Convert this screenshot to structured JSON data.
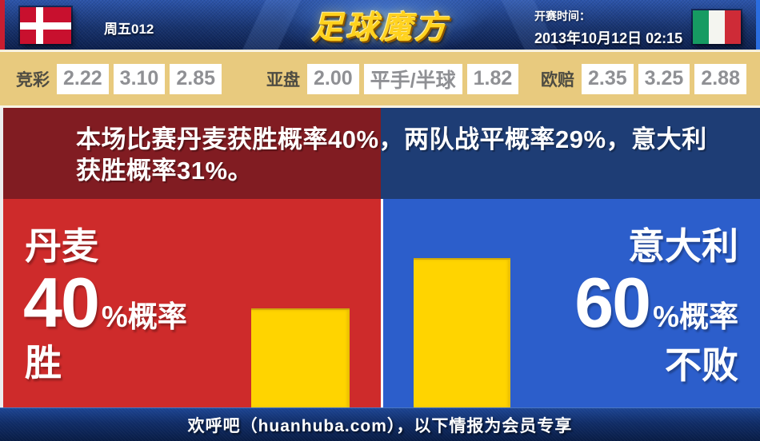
{
  "header": {
    "match_code": "周五012",
    "logo_text": "足球魔方",
    "kickoff_label": "开赛时间：",
    "kickoff_datetime": "2013年10月12日 02:15"
  },
  "icons": {
    "home_flag": "denmark-flag",
    "away_flag": "italy-flag"
  },
  "odds": {
    "groups": [
      {
        "label": "竞彩",
        "values": [
          "2.22",
          "3.10",
          "2.85"
        ]
      },
      {
        "label": "亚盘",
        "values": [
          "2.00",
          "平手/半球",
          "1.82"
        ]
      },
      {
        "label": "欧赔",
        "values": [
          "2.35",
          "3.25",
          "2.88"
        ]
      }
    ]
  },
  "analysis": {
    "line1": "本场比赛丹麦获胜概率40%，两队战平概率29%，意大利",
    "line2": "获胜概率31%。",
    "probabilities": {
      "home_win": "40%",
      "draw": "29%",
      "away_win": "31%"
    }
  },
  "home": {
    "name": "丹麦",
    "percent": "40",
    "suffix": "%概率",
    "result": "胜"
  },
  "away": {
    "name": "意大利",
    "percent": "60",
    "suffix": "%概率",
    "result": "不败"
  },
  "footer": {
    "text": "欢呼吧（huanhuba.com），以下情报为会员专享"
  },
  "chart_data": {
    "type": "bar",
    "categories": [
      "丹麦 胜",
      "意大利 不败"
    ],
    "values": [
      40,
      60
    ],
    "unit": "%概率",
    "bar_color": "#ffd400",
    "ylim": [
      0,
      100
    ],
    "legend": "off",
    "grid": "off"
  },
  "colors": {
    "home_panel": "#ce2b2b",
    "home_panel_dark": "#811c22",
    "away_panel": "#2c5ecb",
    "away_panel_dark": "#1e3d75",
    "bar": "#ffd400",
    "odds_bar_bg": "#e8ca7e",
    "header_bg": "#17336f",
    "footer_bg": "#102c66"
  }
}
